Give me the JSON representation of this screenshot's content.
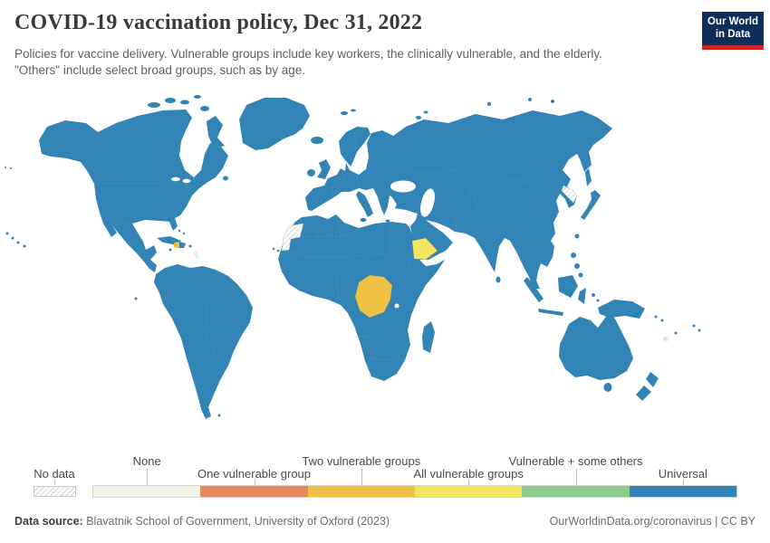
{
  "header": {
    "title": "COVID-19 vaccination policy, Dec 31, 2022",
    "subtitle_line1": "Policies for vaccine delivery. Vulnerable groups include key workers, the clinically vulnerable, and the elderly.",
    "subtitle_line2": "\"Others\" include select broad groups, such as by age.",
    "logo": {
      "line1": "Our World",
      "line2": "in Data",
      "background": "#0D2E5A",
      "accent": "#CE261F"
    }
  },
  "map": {
    "colors": {
      "universal": "#3283B6",
      "two_vulnerable_groups": "#EFC246",
      "all_vulnerable_groups": "#F2E55F",
      "no_data_pattern": "#C2C2C2",
      "border": "#8FA8BA"
    },
    "default_category": "Universal",
    "highlights": [
      {
        "country": "Democratic Republic of Congo",
        "category": "Two vulnerable groups"
      },
      {
        "country": "Haiti",
        "category": "Two vulnerable groups"
      },
      {
        "country": "Yemen",
        "category": "All vulnerable groups"
      },
      {
        "country": "Western Sahara",
        "category": "No data"
      },
      {
        "country": "North Korea",
        "category": "No data"
      }
    ]
  },
  "legend": {
    "no_data_label": "No data",
    "categories": [
      {
        "label": "None",
        "color": "#F4F1E7",
        "row": "top"
      },
      {
        "label": "One vulnerable group",
        "color": "#E8875F",
        "row": "bottom"
      },
      {
        "label": "Two vulnerable groups",
        "color": "#EFC246",
        "row": "top"
      },
      {
        "label": "All vulnerable groups",
        "color": "#F2E55F",
        "row": "bottom"
      },
      {
        "label": "Vulnerable + some others",
        "color": "#8FCA8D",
        "row": "top"
      },
      {
        "label": "Universal",
        "color": "#3283B6",
        "row": "bottom"
      }
    ]
  },
  "footer": {
    "source_label": "Data source:",
    "source_text": " Blavatnik School of Government, University of Oxford (2023)",
    "credit": "OurWorldinData.org/coronavirus | CC BY"
  },
  "chart_data": {
    "type": "choropleth_map",
    "title": "COVID-19 vaccination policy, Dec 31, 2022",
    "date": "Dec 31, 2022",
    "categories": [
      "None",
      "One vulnerable group",
      "Two vulnerable groups",
      "All vulnerable groups",
      "Vulnerable + some others",
      "Universal"
    ],
    "category_colors": [
      "#F4F1E7",
      "#E8875F",
      "#EFC246",
      "#F2E55F",
      "#8FCA8D",
      "#3283B6"
    ],
    "no_data_regions": [
      "Western Sahara",
      "North Korea"
    ],
    "observations": [
      {
        "region": "Democratic Republic of Congo",
        "value": "Two vulnerable groups"
      },
      {
        "region": "Haiti",
        "value": "Two vulnerable groups"
      },
      {
        "region": "Yemen",
        "value": "All vulnerable groups"
      },
      {
        "region": "All other countries shown",
        "value": "Universal"
      }
    ],
    "legend_position": "bottom"
  }
}
